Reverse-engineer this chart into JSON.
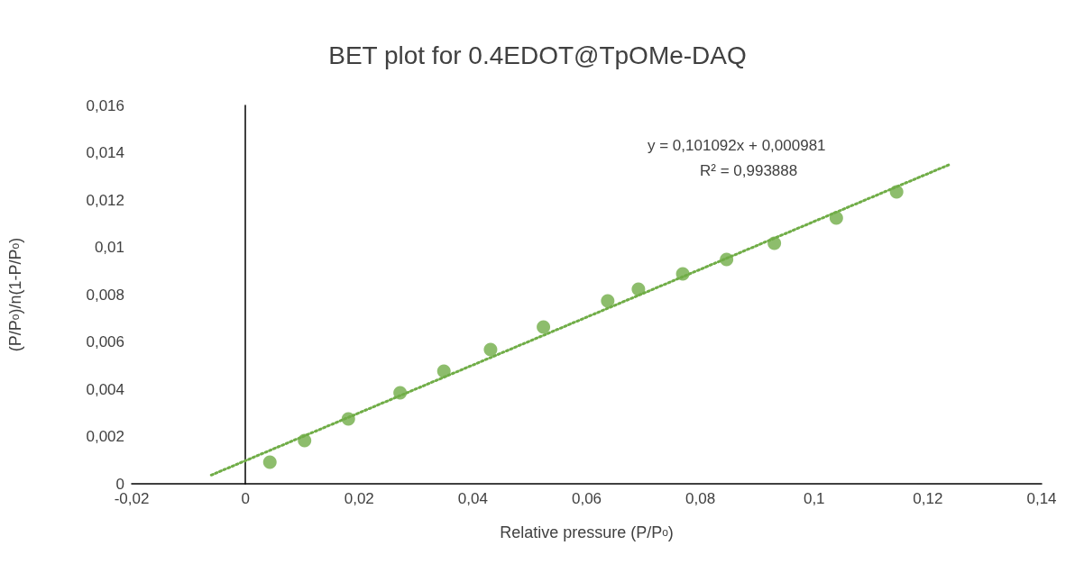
{
  "chart_data": {
    "type": "scatter",
    "title": "BET plot for 0.4EDOT@TpOMe-DAQ",
    "xlabel": "Relative pressure (P/P$_{o}$)",
    "ylabel": "(P/P$_{o}$)/n(1-P/P$_{o}$)",
    "annotations": [
      "y = 0,101092x + 0,000981",
      "R² = 0,993888"
    ],
    "xlim": [
      -0.02,
      0.14
    ],
    "ylim": [
      0,
      0.016
    ],
    "xticks": [
      {
        "value": -0.02,
        "label": "-0,02"
      },
      0,
      {
        "value": 0.02,
        "label": "0,02"
      },
      {
        "value": 0.04,
        "label": "0,04"
      },
      {
        "value": 0.06,
        "label": "0,06"
      },
      {
        "value": 0.08,
        "label": "0,08"
      },
      {
        "value": 0.1,
        "label": "0,1"
      },
      {
        "value": 0.12,
        "label": "0,12"
      },
      {
        "value": 0.14,
        "label": "0,14"
      }
    ],
    "yticks": [
      0,
      {
        "value": 0.002,
        "label": "0,002"
      },
      {
        "value": 0.004,
        "label": "0,004"
      },
      {
        "value": 0.006,
        "label": "0,006"
      },
      {
        "value": 0.008,
        "label": "0,008"
      },
      {
        "value": 0.01,
        "label": "0,01"
      },
      {
        "value": 0.012,
        "label": "0,012"
      },
      {
        "value": 0.014,
        "label": "0,014"
      },
      {
        "value": 0.016,
        "label": "0,016"
      }
    ],
    "marker": "circle",
    "series": [
      {
        "color": "#70ad47",
        "x": [
          0.0043,
          0.0104,
          0.0181,
          0.0272,
          0.0349,
          0.0431,
          0.0524,
          0.0637,
          0.0691,
          0.0769,
          0.0846,
          0.093,
          0.1039,
          0.1145
        ],
        "values": [
          0.00091,
          0.00183,
          0.00274,
          0.00385,
          0.00476,
          0.00568,
          0.00663,
          0.00773,
          0.00823,
          0.00888,
          0.00949,
          0.01017,
          0.01124,
          0.01234
        ]
      },
      {
        "type": "line",
        "color": "#70ad47",
        "line_style": "dotted",
        "marker": "none",
        "x": [
          -0.006,
          0.124
        ],
        "values": [
          0.00037,
          0.01352
        ]
      }
    ]
  }
}
